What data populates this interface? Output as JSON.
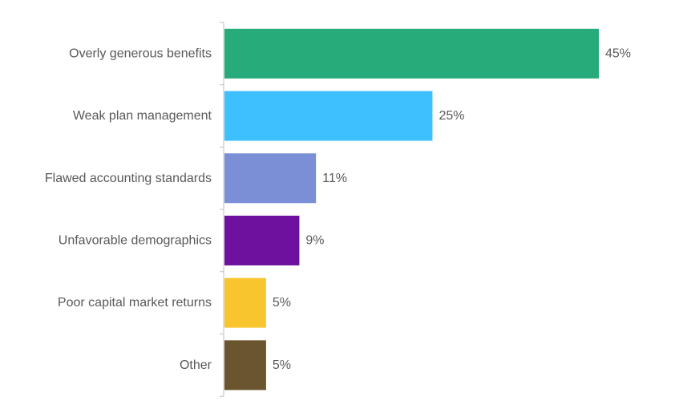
{
  "chart_data": {
    "type": "bar",
    "orientation": "horizontal",
    "title": "",
    "xlabel": "",
    "ylabel": "",
    "categories": [
      "Overly generous benefits",
      "Weak plan management",
      "Flawed accounting standards",
      "Unfavorable demographics",
      "Poor capital market returns",
      "Other"
    ],
    "values": [
      45,
      25,
      11,
      9,
      5,
      5
    ],
    "value_labels": [
      "45%",
      "25%",
      "11%",
      "9%",
      "5%",
      "5%"
    ],
    "colors": [
      "#27ab7a",
      "#3ec0ff",
      "#7b8fd6",
      "#6e119e",
      "#f9c52f",
      "#6b552e"
    ],
    "xlim": [
      0,
      45
    ],
    "grid": false,
    "legend": "none"
  }
}
